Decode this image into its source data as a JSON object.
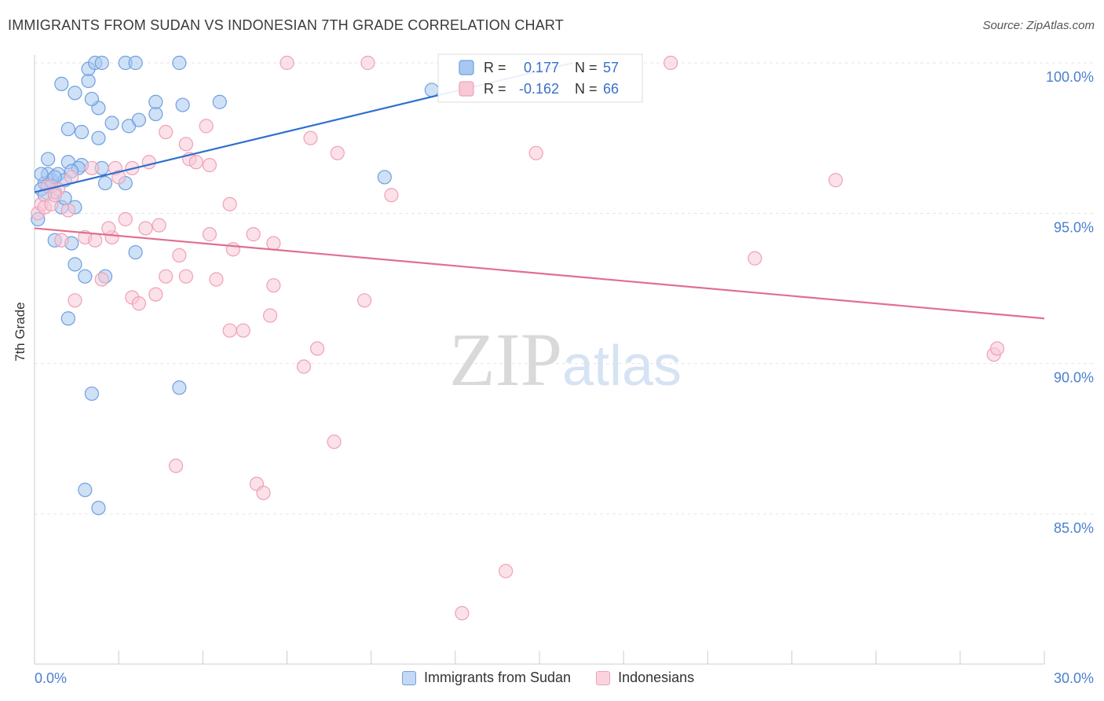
{
  "chart_data": {
    "type": "scatter",
    "title": "IMMIGRANTS FROM SUDAN VS INDONESIAN 7TH GRADE CORRELATION CHART",
    "source": "Source: ZipAtlas.com",
    "ylabel": "7th Grade",
    "xlabel": "",
    "xlim": [
      0,
      30
    ],
    "ylim": [
      80,
      100.7
    ],
    "x_tick_labels": {
      "left": "0.0%",
      "right": "30.0%"
    },
    "y_ticks": [
      {
        "value": 85,
        "label": "85.0%"
      },
      {
        "value": 90,
        "label": "90.0%"
      },
      {
        "value": 95,
        "label": "95.0%"
      },
      {
        "value": 100,
        "label": "100.0%"
      }
    ],
    "watermark": "ZIPatlas",
    "legend_stats": [
      {
        "r_label": "R =",
        "r_value": "0.177",
        "n_label": "N =",
        "n_value": "57"
      },
      {
        "r_label": "R =",
        "r_value": "-0.162",
        "n_label": "N =",
        "n_value": "66"
      }
    ],
    "series": [
      {
        "name": "Immigrants from Sudan",
        "color": "#6f9fe0",
        "fill": "#a8c8f0",
        "line_color": "#2f6fcf",
        "trend": {
          "x0": 0,
          "y0": 95.7,
          "x1": 16.0,
          "y1": 100.0
        },
        "points": [
          [
            0.3,
            96.0
          ],
          [
            0.5,
            96.1
          ],
          [
            0.4,
            96.3
          ],
          [
            0.7,
            96.3
          ],
          [
            0.9,
            96.1
          ],
          [
            0.6,
            95.7
          ],
          [
            0.5,
            95.9
          ],
          [
            0.2,
            95.8
          ],
          [
            0.1,
            94.8
          ],
          [
            0.4,
            96.8
          ],
          [
            0.6,
            96.2
          ],
          [
            1.0,
            96.7
          ],
          [
            1.4,
            96.6
          ],
          [
            1.3,
            96.5
          ],
          [
            2.0,
            96.5
          ],
          [
            2.1,
            96.0
          ],
          [
            2.7,
            96.0
          ],
          [
            0.8,
            95.2
          ],
          [
            1.2,
            95.2
          ],
          [
            0.6,
            94.1
          ],
          [
            1.1,
            94.0
          ],
          [
            1.2,
            93.3
          ],
          [
            1.5,
            92.9
          ],
          [
            2.1,
            92.9
          ],
          [
            3.0,
            93.7
          ],
          [
            1.0,
            91.5
          ],
          [
            1.7,
            89.0
          ],
          [
            4.3,
            89.2
          ],
          [
            1.5,
            85.8
          ],
          [
            1.9,
            85.2
          ],
          [
            1.0,
            97.8
          ],
          [
            1.4,
            97.7
          ],
          [
            1.9,
            97.5
          ],
          [
            2.3,
            98.0
          ],
          [
            2.8,
            97.9
          ],
          [
            3.1,
            98.1
          ],
          [
            3.6,
            98.3
          ],
          [
            3.6,
            98.7
          ],
          [
            4.4,
            98.6
          ],
          [
            5.5,
            98.7
          ],
          [
            1.9,
            98.5
          ],
          [
            1.7,
            98.8
          ],
          [
            1.2,
            99.0
          ],
          [
            0.8,
            99.3
          ],
          [
            1.6,
            99.4
          ],
          [
            1.6,
            99.8
          ],
          [
            1.8,
            100.0
          ],
          [
            2.0,
            100.0
          ],
          [
            2.7,
            100.0
          ],
          [
            3.0,
            100.0
          ],
          [
            4.3,
            100.0
          ],
          [
            10.4,
            96.2
          ],
          [
            11.8,
            99.1
          ],
          [
            0.2,
            96.3
          ],
          [
            0.3,
            95.6
          ],
          [
            0.9,
            95.5
          ],
          [
            1.1,
            96.4
          ]
        ]
      },
      {
        "name": "Indonesians",
        "color": "#f0a0b8",
        "fill": "#f8c8d6",
        "line_color": "#e0708f",
        "trend": {
          "x0": 0,
          "y0": 94.5,
          "x1": 30.0,
          "y1": 91.5
        },
        "points": [
          [
            0.1,
            95.0
          ],
          [
            0.2,
            95.3
          ],
          [
            0.3,
            95.2
          ],
          [
            0.5,
            95.3
          ],
          [
            0.7,
            95.8
          ],
          [
            1.0,
            95.1
          ],
          [
            1.1,
            96.2
          ],
          [
            1.7,
            96.5
          ],
          [
            2.4,
            96.5
          ],
          [
            2.5,
            96.2
          ],
          [
            2.9,
            96.5
          ],
          [
            3.4,
            96.7
          ],
          [
            4.6,
            96.8
          ],
          [
            4.8,
            96.7
          ],
          [
            5.2,
            96.6
          ],
          [
            0.8,
            94.1
          ],
          [
            1.5,
            94.2
          ],
          [
            1.8,
            94.1
          ],
          [
            2.3,
            94.2
          ],
          [
            2.2,
            94.5
          ],
          [
            2.7,
            94.8
          ],
          [
            3.3,
            94.5
          ],
          [
            3.7,
            94.6
          ],
          [
            4.3,
            93.6
          ],
          [
            5.2,
            94.3
          ],
          [
            5.9,
            93.8
          ],
          [
            6.5,
            94.3
          ],
          [
            7.1,
            94.0
          ],
          [
            5.8,
            95.3
          ],
          [
            1.2,
            92.1
          ],
          [
            2.0,
            92.8
          ],
          [
            2.9,
            92.2
          ],
          [
            3.1,
            92.0
          ],
          [
            3.6,
            92.3
          ],
          [
            3.9,
            92.9
          ],
          [
            4.5,
            92.9
          ],
          [
            5.4,
            92.8
          ],
          [
            7.1,
            92.6
          ],
          [
            7.0,
            91.6
          ],
          [
            5.8,
            91.1
          ],
          [
            6.2,
            91.1
          ],
          [
            8.0,
            89.9
          ],
          [
            8.4,
            90.5
          ],
          [
            9.8,
            92.1
          ],
          [
            8.9,
            87.4
          ],
          [
            4.2,
            86.6
          ],
          [
            6.6,
            86.0
          ],
          [
            6.8,
            85.7
          ],
          [
            14.0,
            83.1
          ],
          [
            12.7,
            81.7
          ],
          [
            21.4,
            93.5
          ],
          [
            23.8,
            96.1
          ],
          [
            28.5,
            90.3
          ],
          [
            28.6,
            90.5
          ],
          [
            10.6,
            95.6
          ],
          [
            8.2,
            97.5
          ],
          [
            9.0,
            97.0
          ],
          [
            14.9,
            97.0
          ],
          [
            3.9,
            97.7
          ],
          [
            4.5,
            97.3
          ],
          [
            5.1,
            97.9
          ],
          [
            7.5,
            100.0
          ],
          [
            9.9,
            100.0
          ],
          [
            18.9,
            100.0
          ],
          [
            0.4,
            95.9
          ],
          [
            0.6,
            95.6
          ]
        ]
      }
    ]
  }
}
